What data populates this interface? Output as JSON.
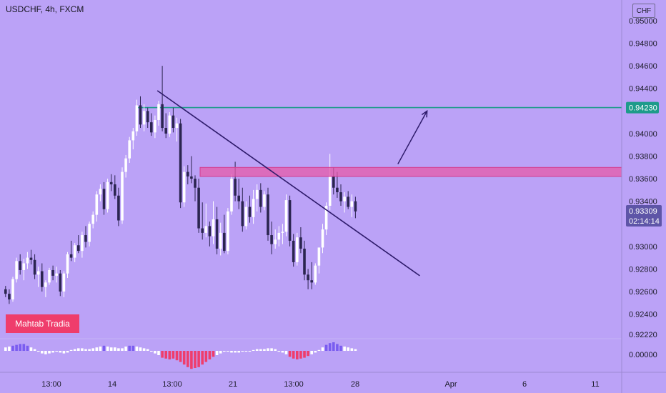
{
  "header": {
    "symbol_title": "USDCHF, 4h, FXCM",
    "currency": "CHF"
  },
  "watermark": "Mahtab Tradia",
  "colors": {
    "background": "#bba2f7",
    "candle_up": "#ffffff",
    "candle_down": "#2b2550",
    "resistance_line": "#1e9b8a",
    "supply_zone": "#e55aa8",
    "trendline": "#2e1b6b",
    "osc_positive": "#7a5cf0",
    "osc_negative": "#ef3d6c"
  },
  "chart_data": {
    "type": "candlestick",
    "symbol": "USDCHF",
    "timeframe": "4h",
    "source": "FXCM",
    "y_axis": {
      "ticks": [
        "0.95000",
        "0.94800",
        "0.94600",
        "0.94400",
        "0.94000",
        "0.93800",
        "0.93600",
        "0.93400",
        "0.93000",
        "0.92800",
        "0.92600",
        "0.92400",
        "0.92220"
      ],
      "range": [
        0.9216,
        0.9505
      ]
    },
    "x_axis": {
      "ticks": [
        "13:00",
        "14",
        "13:00",
        "21",
        "13:00",
        "28",
        "Apr",
        "6",
        "11"
      ]
    },
    "price_labels": [
      {
        "id": "resistance",
        "value": "0.94230",
        "price": 0.9423
      },
      {
        "id": "current",
        "value": "0.93309",
        "price": 0.93309,
        "countdown": "02:14:14"
      }
    ],
    "oscillator": {
      "zero_label": "0.00000"
    },
    "candles": [
      [
        0.9262,
        0.9265,
        0.9255,
        0.9258
      ],
      [
        0.9258,
        0.9262,
        0.9249,
        0.9253
      ],
      [
        0.9253,
        0.9273,
        0.9251,
        0.9271
      ],
      [
        0.9271,
        0.929,
        0.9268,
        0.9287
      ],
      [
        0.9287,
        0.9293,
        0.9275,
        0.9279
      ],
      [
        0.9279,
        0.9289,
        0.927,
        0.9285
      ],
      [
        0.9285,
        0.9295,
        0.928,
        0.929
      ],
      [
        0.929,
        0.9297,
        0.9284,
        0.9288
      ],
      [
        0.9288,
        0.9293,
        0.9271,
        0.9275
      ],
      [
        0.9275,
        0.9282,
        0.9264,
        0.9278
      ],
      [
        0.9278,
        0.9285,
        0.926,
        0.9264
      ],
      [
        0.9264,
        0.927,
        0.9255,
        0.9268
      ],
      [
        0.9268,
        0.9281,
        0.9266,
        0.9279
      ],
      [
        0.9279,
        0.9283,
        0.927,
        0.9274
      ],
      [
        0.9274,
        0.9282,
        0.9268,
        0.9276
      ],
      [
        0.9276,
        0.9279,
        0.9256,
        0.926
      ],
      [
        0.926,
        0.9278,
        0.9255,
        0.9276
      ],
      [
        0.9276,
        0.9295,
        0.9272,
        0.9293
      ],
      [
        0.9293,
        0.9305,
        0.9287,
        0.929
      ],
      [
        0.929,
        0.9303,
        0.9286,
        0.9301
      ],
      [
        0.9301,
        0.931,
        0.9294,
        0.9296
      ],
      [
        0.9296,
        0.9313,
        0.929,
        0.931
      ],
      [
        0.931,
        0.9318,
        0.9299,
        0.9304
      ],
      [
        0.9304,
        0.9322,
        0.93,
        0.932
      ],
      [
        0.932,
        0.9331,
        0.9316,
        0.9328
      ],
      [
        0.9328,
        0.9349,
        0.9322,
        0.9346
      ],
      [
        0.9346,
        0.9355,
        0.934,
        0.9351
      ],
      [
        0.9351,
        0.9357,
        0.9328,
        0.9333
      ],
      [
        0.9333,
        0.936,
        0.933,
        0.9357
      ],
      [
        0.9357,
        0.9364,
        0.9349,
        0.9355
      ],
      [
        0.9355,
        0.9363,
        0.9342,
        0.9345
      ],
      [
        0.9345,
        0.9352,
        0.9318,
        0.9323
      ],
      [
        0.9323,
        0.937,
        0.932,
        0.9366
      ],
      [
        0.9366,
        0.9381,
        0.9361,
        0.9378
      ],
      [
        0.9378,
        0.9397,
        0.9374,
        0.9394
      ],
      [
        0.9394,
        0.9405,
        0.9386,
        0.9402
      ],
      [
        0.9402,
        0.943,
        0.9398,
        0.9425
      ],
      [
        0.9425,
        0.9433,
        0.9405,
        0.9408
      ],
      [
        0.9408,
        0.9426,
        0.9402,
        0.942
      ],
      [
        0.942,
        0.9423,
        0.9405,
        0.941
      ],
      [
        0.941,
        0.9418,
        0.9398,
        0.9401
      ],
      [
        0.9401,
        0.9416,
        0.9396,
        0.9412
      ],
      [
        0.9412,
        0.9429,
        0.9407,
        0.9426
      ],
      [
        0.9426,
        0.946,
        0.9402,
        0.9405
      ],
      [
        0.9405,
        0.9418,
        0.9396,
        0.94
      ],
      [
        0.94,
        0.9419,
        0.9397,
        0.9416
      ],
      [
        0.9416,
        0.9423,
        0.9401,
        0.9405
      ],
      [
        0.9405,
        0.9414,
        0.9393,
        0.9409
      ],
      [
        0.9409,
        0.9413,
        0.9334,
        0.9339
      ],
      [
        0.9339,
        0.9371,
        0.9335,
        0.9366
      ],
      [
        0.9366,
        0.9372,
        0.9355,
        0.9362
      ],
      [
        0.9362,
        0.938,
        0.9356,
        0.936
      ],
      [
        0.936,
        0.9363,
        0.934,
        0.9352
      ],
      [
        0.9352,
        0.936,
        0.9312,
        0.9316
      ],
      [
        0.9316,
        0.9339,
        0.9306,
        0.9312
      ],
      [
        0.9312,
        0.9338,
        0.9308,
        0.9318
      ],
      [
        0.9318,
        0.9322,
        0.93,
        0.9309
      ],
      [
        0.9309,
        0.934,
        0.9302,
        0.9324
      ],
      [
        0.9324,
        0.9335,
        0.9293,
        0.9298
      ],
      [
        0.9298,
        0.9321,
        0.9292,
        0.9312
      ],
      [
        0.9312,
        0.9328,
        0.9294,
        0.9296
      ],
      [
        0.9296,
        0.9334,
        0.9293,
        0.9331
      ],
      [
        0.9331,
        0.9364,
        0.9328,
        0.936
      ],
      [
        0.936,
        0.9375,
        0.934,
        0.9345
      ],
      [
        0.9345,
        0.936,
        0.9333,
        0.934
      ],
      [
        0.934,
        0.9352,
        0.9313,
        0.9318
      ],
      [
        0.9318,
        0.934,
        0.9315,
        0.9335
      ],
      [
        0.9335,
        0.9345,
        0.9321,
        0.9326
      ],
      [
        0.9326,
        0.935,
        0.932,
        0.9342
      ],
      [
        0.9342,
        0.9355,
        0.9331,
        0.935
      ],
      [
        0.935,
        0.9356,
        0.933,
        0.9335
      ],
      [
        0.9335,
        0.9349,
        0.9332,
        0.9346
      ],
      [
        0.9346,
        0.9352,
        0.9305,
        0.931
      ],
      [
        0.931,
        0.9322,
        0.9293,
        0.9302
      ],
      [
        0.9302,
        0.9315,
        0.9298,
        0.9306
      ],
      [
        0.9306,
        0.9318,
        0.93,
        0.9312
      ],
      [
        0.9312,
        0.932,
        0.9302,
        0.9313
      ],
      [
        0.9313,
        0.9346,
        0.9309,
        0.9341
      ],
      [
        0.9341,
        0.9345,
        0.93,
        0.9305
      ],
      [
        0.9305,
        0.9311,
        0.9282,
        0.9286
      ],
      [
        0.9286,
        0.9312,
        0.9283,
        0.9308
      ],
      [
        0.9308,
        0.9317,
        0.9294,
        0.9298
      ],
      [
        0.9298,
        0.9305,
        0.927,
        0.9275
      ],
      [
        0.9275,
        0.928,
        0.9262,
        0.927
      ],
      [
        0.927,
        0.9286,
        0.9262,
        0.9268
      ],
      [
        0.9268,
        0.9285,
        0.9266,
        0.9283
      ],
      [
        0.9283,
        0.9297,
        0.9276,
        0.9299
      ],
      [
        0.9299,
        0.932,
        0.9294,
        0.9315
      ],
      [
        0.9315,
        0.9339,
        0.931,
        0.9336
      ],
      [
        0.9336,
        0.9382,
        0.9332,
        0.9362
      ],
      [
        0.9362,
        0.937,
        0.9346,
        0.9352
      ],
      [
        0.9352,
        0.9366,
        0.9343,
        0.9348
      ],
      [
        0.9348,
        0.9355,
        0.9336,
        0.934
      ],
      [
        0.934,
        0.9348,
        0.933,
        0.9344
      ],
      [
        0.9344,
        0.9349,
        0.9333,
        0.9335
      ],
      [
        0.9335,
        0.9346,
        0.9326,
        0.934
      ],
      [
        0.934,
        0.9344,
        0.9325,
        0.9331
      ]
    ],
    "oscillator_values": [
      0.4,
      0.5,
      0.6,
      0.7,
      0.8,
      0.8,
      0.6,
      0.4,
      0.2,
      -0.1,
      -0.3,
      -0.4,
      -0.3,
      -0.2,
      -0.1,
      -0.2,
      -0.3,
      -0.2,
      0.1,
      0.2,
      0.3,
      0.3,
      0.2,
      0.2,
      0.3,
      0.4,
      0.5,
      0.6,
      0.5,
      0.4,
      0.4,
      0.3,
      0.3,
      0.5,
      0.6,
      0.6,
      0.5,
      0.4,
      0.3,
      0.2,
      -0.1,
      -0.3,
      -0.5,
      -0.8,
      -0.9,
      -1.0,
      -0.9,
      -1.1,
      -1.3,
      -1.6,
      -1.9,
      -2.1,
      -2.0,
      -1.9,
      -1.6,
      -1.3,
      -1.0,
      -0.7,
      -0.5,
      -0.3,
      -0.1,
      -0.1,
      -0.2,
      -0.2,
      -0.2,
      -0.1,
      -0.1,
      -0.1,
      0.1,
      0.2,
      0.2,
      0.2,
      0.3,
      0.3,
      0.2,
      -0.1,
      -0.2,
      -0.4,
      -0.7,
      -0.9,
      -1.0,
      -0.9,
      -0.8,
      -0.6,
      -0.4,
      -0.2,
      0.1,
      0.4,
      0.7,
      0.9,
      1.0,
      0.8,
      0.6,
      0.5,
      0.4,
      0.3,
      0.2
    ],
    "drawings": {
      "resistance_level": 0.9423,
      "supply_zone": [
        0.9362,
        0.937
      ],
      "trendline": [
        {
          "bar": 42,
          "price": 0.9438
        },
        {
          "bar": 114,
          "price": 0.9274
        }
      ],
      "projection_arrow": [
        {
          "bar": 108,
          "price": 0.9373
        },
        {
          "bar": 116,
          "price": 0.942
        }
      ]
    }
  }
}
